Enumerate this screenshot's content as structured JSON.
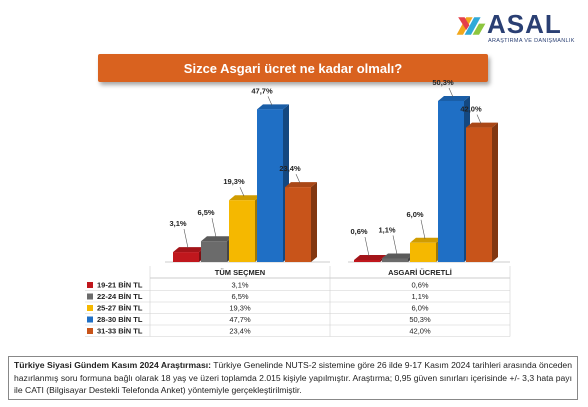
{
  "logo": {
    "name": "ASAL",
    "subtitle": "ARAŞTIRMA VE DANIŞMANLIK"
  },
  "title": "Sizce Asgari ücret ne kadar olmalı?",
  "chart_data": {
    "type": "bar",
    "groups": [
      "TÜM SEÇMEN",
      "ASGARİ ÜCRETLİ"
    ],
    "series": [
      {
        "name": "19-21 BİN TL",
        "color": "#c0171d",
        "values": [
          3.1,
          0.6
        ],
        "labels": [
          "3,1%",
          "0,6%"
        ]
      },
      {
        "name": "22-24 BİN TL",
        "color": "#6b6b6b",
        "values": [
          6.5,
          1.1
        ],
        "labels": [
          "6,5%",
          "1,1%"
        ]
      },
      {
        "name": "25-27 BİN TL",
        "color": "#f5b800",
        "values": [
          19.3,
          6.0
        ],
        "labels": [
          "19,3%",
          "6,0%"
        ]
      },
      {
        "name": "28-30 BİN TL",
        "color": "#1f6fc5",
        "values": [
          47.7,
          50.3
        ],
        "labels": [
          "47,7%",
          "50,3%"
        ]
      },
      {
        "name": "31-33 BİN TL",
        "color": "#c8541a",
        "values": [
          23.4,
          42.0
        ],
        "labels": [
          "23,4%",
          "42,0%"
        ]
      }
    ],
    "ylim": [
      0,
      55
    ]
  },
  "footer": {
    "bold": "Türkiye Siyasi Gündem Kasım 2024 Araştırması:",
    "text": " Türkiye Genelinde NUTS-2 sistemine göre 26 ilde 9-17 Kasım 2024 tarihleri arasında önceden hazırlanmış soru formuna bağlı olarak 18 yaş ve üzeri toplamda 2.015 kişiyle yapılmıştır. Araştırma; 0,95 güven sınırları içerisinde +/- 3,3 hata payı ile CATI (Bilgisayar Destekli Telefonda Anket) yöntemiyle gerçekleştirilmiştir."
  }
}
